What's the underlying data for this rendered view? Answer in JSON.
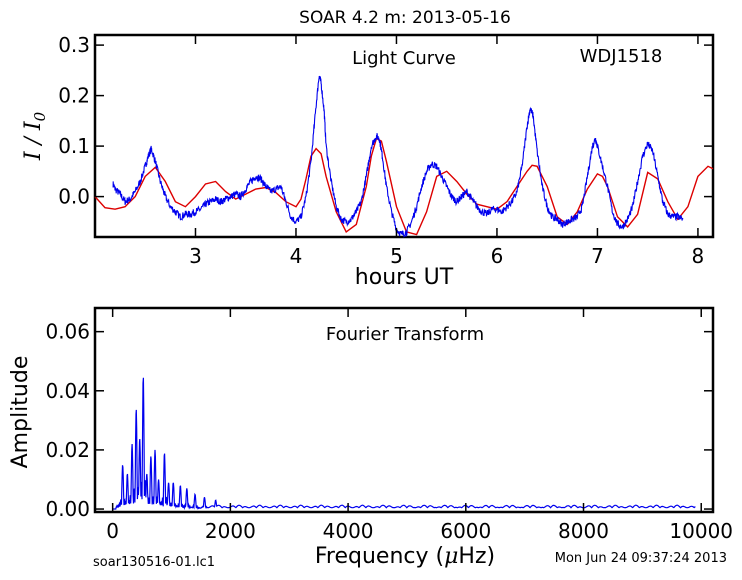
{
  "title": "SOAR 4.2 m:  2013-05-16",
  "footer": {
    "filename": "soar130516-01.lc1",
    "timestamp": "Mon Jun 24 09:37:24 2013"
  },
  "colors": {
    "data": "#0000ee",
    "model": "#dd0000",
    "axes": "#000000"
  },
  "chart_data": [
    {
      "id": "light-curve",
      "type": "line",
      "title": "Light Curve",
      "annotation": "WDJ1518",
      "xlabel": "hours UT",
      "ylabel_parts": [
        "I",
        " / ",
        "I",
        "0"
      ],
      "xlim": [
        2.0,
        8.15
      ],
      "ylim": [
        -0.08,
        0.32
      ],
      "xticks": [
        3,
        4,
        5,
        6,
        7,
        8
      ],
      "xtick_labels": [
        "3",
        "4",
        "5",
        "6",
        "7",
        "8"
      ],
      "yticks": [
        0.0,
        0.1,
        0.2,
        0.3
      ],
      "ytick_labels": [
        "0.0",
        "0.1",
        "0.2",
        "0.3"
      ],
      "series": [
        {
          "kind": "data",
          "x": [
            2.18,
            2.2,
            2.25,
            2.3,
            2.35,
            2.4,
            2.45,
            2.5,
            2.53,
            2.56,
            2.6,
            2.65,
            2.7,
            2.75,
            2.8,
            2.85,
            2.9,
            2.95,
            3.0,
            3.05,
            3.1,
            3.15,
            3.2,
            3.25,
            3.3,
            3.35,
            3.4,
            3.45,
            3.5,
            3.55,
            3.6,
            3.65,
            3.7,
            3.75,
            3.8,
            3.85,
            3.9,
            3.95,
            4.0,
            4.05,
            4.1,
            4.15,
            4.2,
            4.23,
            4.25,
            4.28,
            4.3,
            4.35,
            4.4,
            4.45,
            4.5,
            4.55,
            4.6,
            4.65,
            4.7,
            4.75,
            4.8,
            4.83,
            4.86,
            4.9,
            4.95,
            5.0,
            5.05,
            5.1,
            5.15,
            5.2,
            5.25,
            5.3,
            5.35,
            5.4,
            5.45,
            5.5,
            5.55,
            5.6,
            5.65,
            5.7,
            5.75,
            5.8,
            5.85,
            5.9,
            5.95,
            6.0,
            6.05,
            6.1,
            6.15,
            6.2,
            6.25,
            6.3,
            6.33,
            6.36,
            6.4,
            6.45,
            6.5,
            6.55,
            6.6,
            6.65,
            6.7,
            6.75,
            6.8,
            6.85,
            6.9,
            6.95,
            6.98,
            7.0,
            7.05,
            7.1,
            7.15,
            7.2,
            7.25,
            7.3,
            7.35,
            7.4,
            7.45,
            7.5,
            7.55,
            7.6,
            7.65,
            7.7,
            7.75,
            7.8,
            7.85
          ],
          "y": [
            0.025,
            0.015,
            0.005,
            -0.01,
            -0.005,
            0.01,
            0.03,
            0.06,
            0.08,
            0.095,
            0.07,
            0.03,
            0.0,
            -0.02,
            -0.03,
            -0.04,
            -0.035,
            -0.035,
            -0.03,
            -0.025,
            -0.015,
            -0.01,
            -0.005,
            -0.01,
            -0.005,
            0.0,
            0.005,
            0.0,
            0.015,
            0.03,
            0.04,
            0.035,
            0.02,
            0.01,
            0.015,
            0.02,
            -0.01,
            -0.04,
            -0.05,
            -0.04,
            0.0,
            0.07,
            0.18,
            0.24,
            0.225,
            0.17,
            0.1,
            0.03,
            -0.02,
            -0.045,
            -0.05,
            -0.045,
            -0.03,
            -0.01,
            0.04,
            0.1,
            0.12,
            0.115,
            0.08,
            0.02,
            -0.03,
            -0.065,
            -0.075,
            -0.07,
            -0.05,
            -0.02,
            0.02,
            0.05,
            0.065,
            0.06,
            0.04,
            0.02,
            0.0,
            -0.01,
            0.0,
            0.01,
            -0.005,
            -0.02,
            -0.03,
            -0.035,
            -0.025,
            -0.025,
            -0.03,
            -0.02,
            -0.01,
            0.01,
            0.06,
            0.14,
            0.175,
            0.16,
            0.09,
            0.02,
            -0.02,
            -0.04,
            -0.045,
            -0.055,
            -0.05,
            -0.045,
            -0.04,
            -0.02,
            0.04,
            0.1,
            0.115,
            0.1,
            0.06,
            0.02,
            -0.03,
            -0.055,
            -0.06,
            -0.045,
            -0.02,
            0.03,
            0.08,
            0.105,
            0.09,
            0.04,
            -0.01,
            -0.035,
            -0.04,
            -0.04,
            -0.045
          ]
        },
        {
          "kind": "model",
          "x": [
            2.0,
            2.1,
            2.2,
            2.3,
            2.4,
            2.5,
            2.6,
            2.7,
            2.8,
            2.9,
            3.0,
            3.1,
            3.2,
            3.3,
            3.4,
            3.5,
            3.6,
            3.7,
            3.8,
            3.9,
            4.0,
            4.05,
            4.1,
            4.15,
            4.2,
            4.25,
            4.3,
            4.4,
            4.5,
            4.6,
            4.7,
            4.75,
            4.8,
            4.85,
            4.9,
            5.0,
            5.1,
            5.2,
            5.3,
            5.4,
            5.5,
            5.6,
            5.7,
            5.8,
            5.9,
            6.0,
            6.1,
            6.2,
            6.3,
            6.35,
            6.4,
            6.5,
            6.6,
            6.7,
            6.8,
            6.9,
            7.0,
            7.05,
            7.1,
            7.2,
            7.3,
            7.4,
            7.5,
            7.6,
            7.7,
            7.8,
            7.9,
            8.0,
            8.1,
            8.15
          ],
          "y": [
            0.0,
            -0.022,
            -0.025,
            -0.02,
            0.0,
            0.04,
            0.058,
            0.03,
            -0.01,
            -0.02,
            0.0,
            0.025,
            0.03,
            0.01,
            -0.005,
            0.005,
            0.015,
            0.018,
            0.008,
            -0.01,
            -0.02,
            -0.005,
            0.035,
            0.08,
            0.095,
            0.085,
            0.04,
            -0.03,
            -0.07,
            -0.055,
            0.02,
            0.08,
            0.115,
            0.11,
            0.07,
            -0.02,
            -0.07,
            -0.075,
            -0.03,
            0.04,
            0.05,
            0.03,
            0.005,
            -0.015,
            -0.02,
            -0.025,
            -0.01,
            0.02,
            0.05,
            0.062,
            0.06,
            0.02,
            -0.04,
            -0.055,
            -0.03,
            0.015,
            0.045,
            0.04,
            0.02,
            -0.04,
            -0.06,
            -0.035,
            0.048,
            0.035,
            -0.01,
            -0.045,
            -0.02,
            0.04,
            0.06,
            0.055
          ]
        }
      ]
    },
    {
      "id": "fourier-transform",
      "type": "line",
      "title": "Fourier Transform",
      "xlabel_parts": [
        "Frequency (",
        "μ",
        "Hz)"
      ],
      "ylabel": "Amplitude",
      "xlim": [
        -300,
        10200
      ],
      "ylim": [
        -0.001,
        0.068
      ],
      "xticks": [
        0,
        2000,
        4000,
        6000,
        8000,
        10000
      ],
      "xtick_labels": [
        "0",
        "2000",
        "4000",
        "6000",
        "8000",
        "10000"
      ],
      "yticks": [
        0.0,
        0.02,
        0.04,
        0.06
      ],
      "ytick_labels": [
        "0.00",
        "0.02",
        "0.04",
        "0.06"
      ],
      "series": [
        {
          "kind": "data",
          "peaks": [
            {
              "f": 170,
              "a": 0.015
            },
            {
              "f": 250,
              "a": 0.012
            },
            {
              "f": 330,
              "a": 0.022
            },
            {
              "f": 400,
              "a": 0.034
            },
            {
              "f": 460,
              "a": 0.024
            },
            {
              "f": 520,
              "a": 0.045
            },
            {
              "f": 580,
              "a": 0.012
            },
            {
              "f": 650,
              "a": 0.018
            },
            {
              "f": 720,
              "a": 0.02
            },
            {
              "f": 780,
              "a": 0.01
            },
            {
              "f": 880,
              "a": 0.019
            },
            {
              "f": 950,
              "a": 0.009
            },
            {
              "f": 1030,
              "a": 0.009
            },
            {
              "f": 1150,
              "a": 0.008
            },
            {
              "f": 1260,
              "a": 0.007
            },
            {
              "f": 1400,
              "a": 0.005
            },
            {
              "f": 1560,
              "a": 0.004
            },
            {
              "f": 1750,
              "a": 0.003
            }
          ],
          "noise_level": 0.0013
        }
      ]
    }
  ]
}
